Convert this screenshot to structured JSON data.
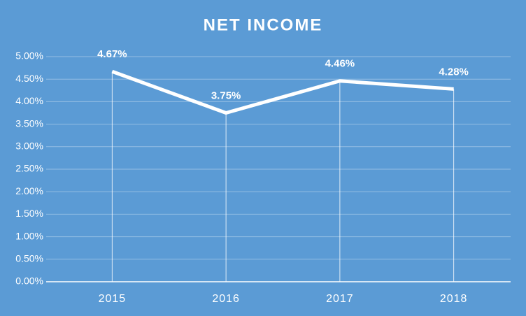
{
  "chart_data": {
    "type": "line",
    "title": "NET INCOME",
    "categories": [
      "2015",
      "2016",
      "2017",
      "2018"
    ],
    "values": [
      4.67,
      3.75,
      4.46,
      4.28
    ],
    "value_labels": [
      "4.67%",
      "3.75%",
      "4.46%",
      "4.28%"
    ],
    "color": "#ffffff",
    "ylim": [
      0,
      5
    ],
    "yticks": [
      {
        "value": 0,
        "label": "0.00%"
      },
      {
        "value": 0.5,
        "label": "0.50%"
      },
      {
        "value": 1,
        "label": "1.00%"
      },
      {
        "value": 1.5,
        "label": "1.50%"
      },
      {
        "value": 2,
        "label": "2.00%"
      },
      {
        "value": 2.5,
        "label": "2.50%"
      },
      {
        "value": 3,
        "label": "3.00%"
      },
      {
        "value": 3.5,
        "label": "3.50%"
      },
      {
        "value": 4,
        "label": "4.00%"
      },
      {
        "value": 4.5,
        "label": "4.50%"
      },
      {
        "value": 5,
        "label": "5.00%"
      }
    ],
    "grid": true,
    "drop_lines": true
  }
}
